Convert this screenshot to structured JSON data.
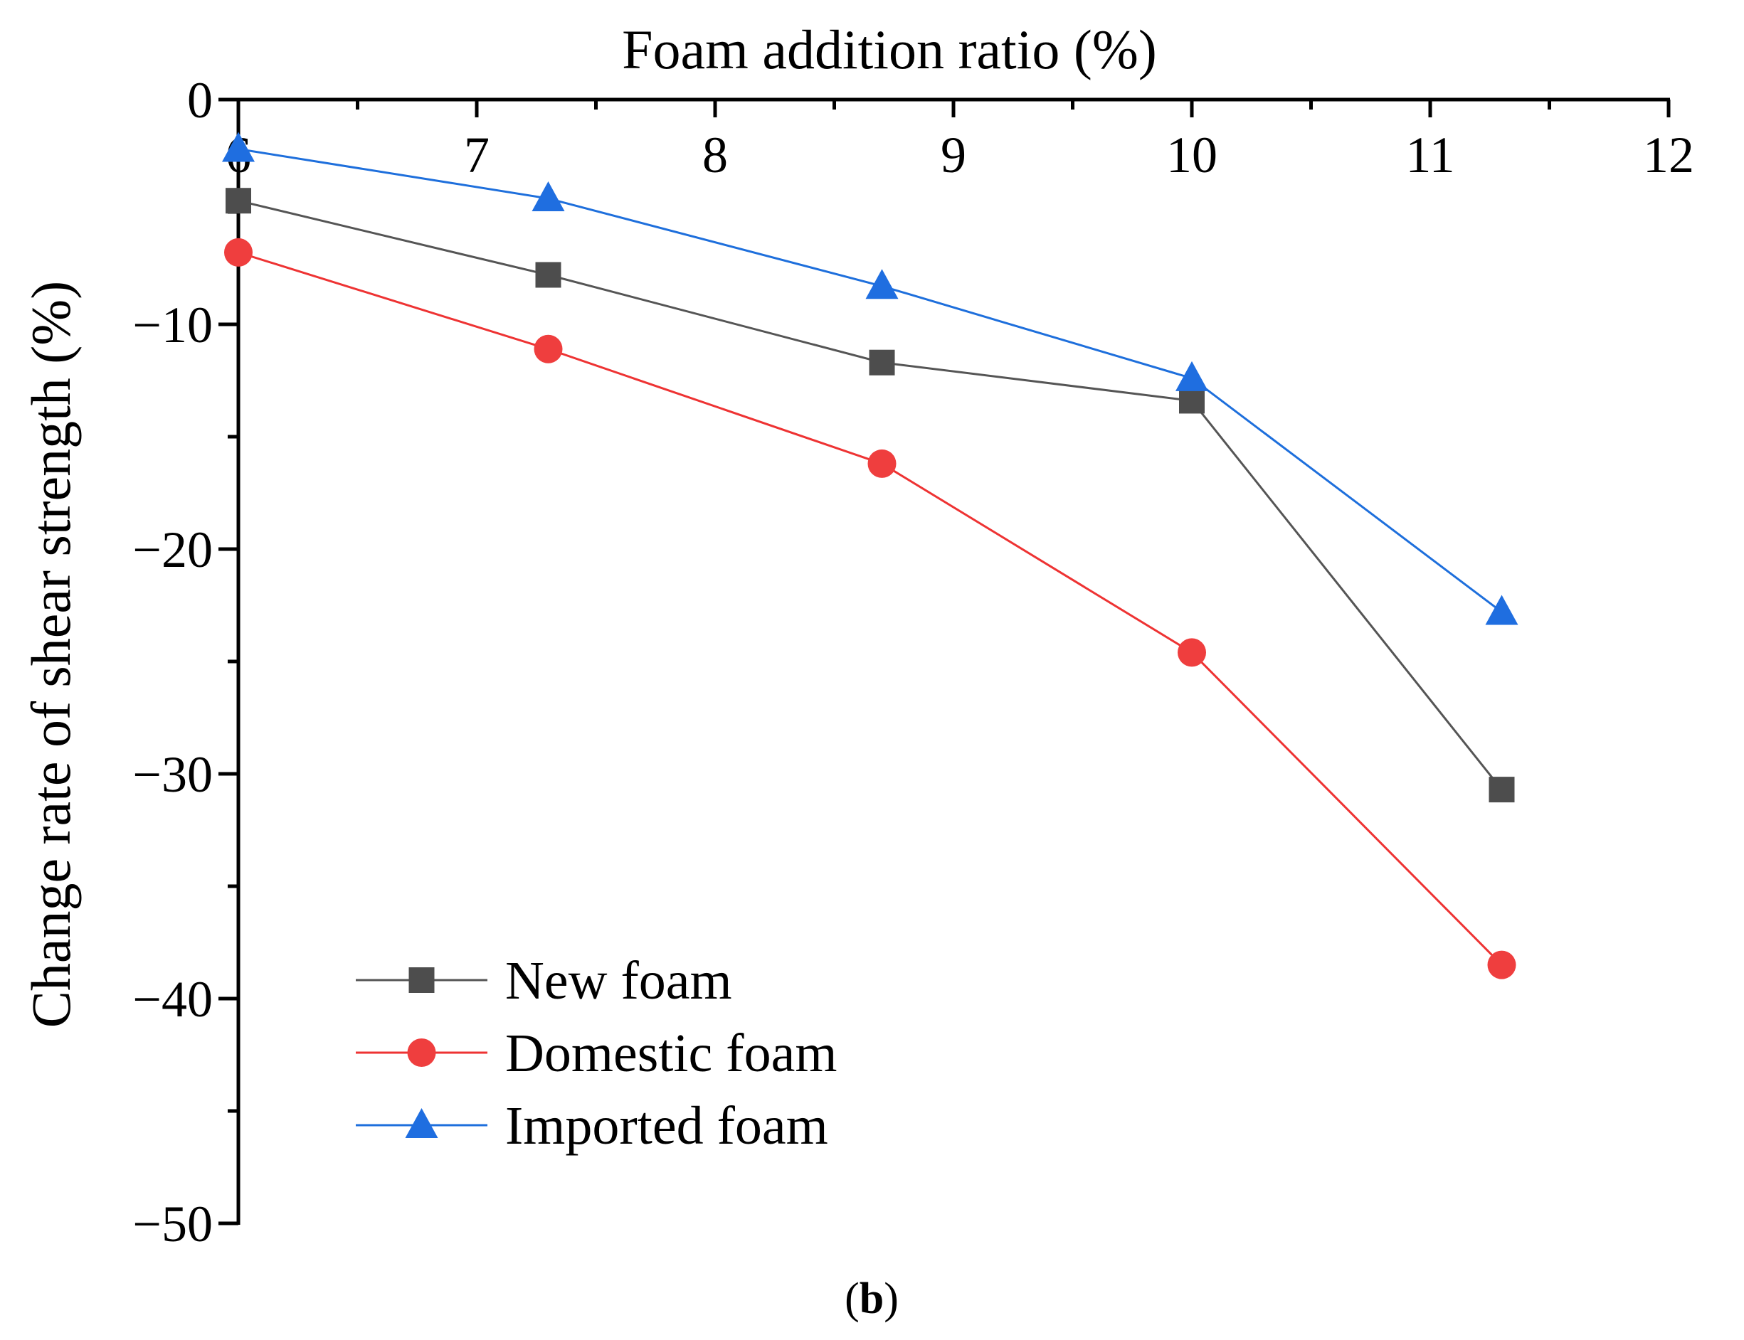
{
  "chart_data": {
    "type": "line",
    "title": "",
    "xlabel": "Foam addition ratio (%)",
    "ylabel": "Change rate of shear strength (%)",
    "x_axis_position": "top",
    "xlim": [
      6,
      12
    ],
    "ylim": [
      -50,
      0
    ],
    "x_ticks": [
      6,
      7,
      8,
      9,
      10,
      11,
      12
    ],
    "x_tick_labels": [
      "6",
      "7",
      "8",
      "9",
      "10",
      "11",
      "12"
    ],
    "y_ticks": [
      0,
      -10,
      -20,
      -30,
      -40,
      -50
    ],
    "y_tick_labels": [
      "0",
      "−10",
      "−20",
      "−30",
      "−40",
      "−50"
    ],
    "grid": false,
    "legend_position": "bottom-left",
    "series": [
      {
        "name": "New foam",
        "marker": "square",
        "color": "#555555",
        "marker_color": "#4d4d4d",
        "x": [
          6.0,
          7.3,
          8.7,
          10.0,
          11.3
        ],
        "values": [
          -4.5,
          -7.8,
          -11.7,
          -13.4,
          -30.7
        ]
      },
      {
        "name": "Domestic foam",
        "marker": "circle",
        "color": "#ee3333",
        "marker_color": "#ef3e3e",
        "x": [
          6.0,
          7.3,
          8.7,
          10.0,
          11.3
        ],
        "values": [
          -6.8,
          -11.1,
          -16.2,
          -24.6,
          -38.5
        ]
      },
      {
        "name": "Imported foam",
        "marker": "triangle",
        "color": "#1e6fdc",
        "marker_color": "#1f6ee0",
        "x": [
          6.0,
          7.3,
          8.7,
          10.0,
          11.3
        ],
        "values": [
          -2.2,
          -4.4,
          -8.3,
          -12.4,
          -22.8
        ]
      }
    ],
    "panel_label": "(b)"
  }
}
